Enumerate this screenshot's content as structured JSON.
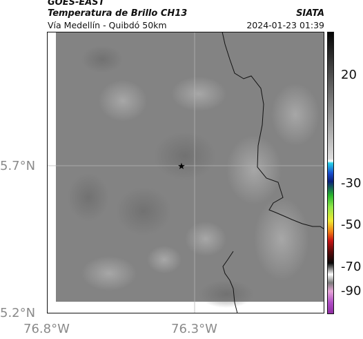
{
  "header": {
    "source": "GOES-EAST",
    "title": "Temperatura de Brillo CH13",
    "organization": "SIATA",
    "subtitle": "Vía Medellín - Quibdó 50km",
    "timestamp": "2024-01-23 01:39"
  },
  "map": {
    "marker_icon": "star-icon",
    "y_ticks": [
      "5.7°N",
      "5.2°N"
    ],
    "x_ticks": [
      "76.8°W",
      "76.3°W"
    ]
  },
  "colorbar": {
    "ticks": [
      "20",
      "-30",
      "-50",
      "-70",
      "-90"
    ]
  }
}
